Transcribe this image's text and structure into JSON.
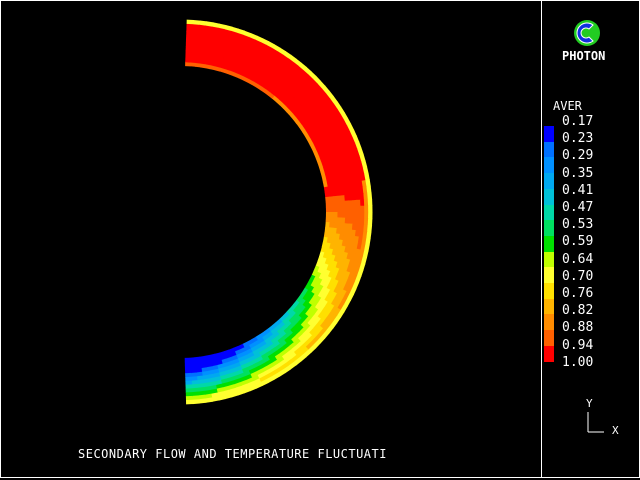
{
  "title": "SECONDARY FLOW AND TEMPERATURE FLUCTUATI",
  "logo": {
    "text": "PHOTON",
    "icon": "photon-logo-icon"
  },
  "legend": {
    "variable": "AVER",
    "labels": [
      "0.17",
      "0.23",
      "0.29",
      "0.35",
      "0.41",
      "0.47",
      "0.53",
      "0.59",
      "0.64",
      "0.70",
      "0.76",
      "0.82",
      "0.88",
      "0.94",
      "1.00"
    ],
    "colors": [
      "#0000ff",
      "#0070ff",
      "#0090ff",
      "#00a8f0",
      "#00c0d8",
      "#00d8a8",
      "#00e060",
      "#00e000",
      "#c0ff00",
      "#ffff30",
      "#ffe000",
      "#ffb400",
      "#ff8c00",
      "#ff6000",
      "#ff0000"
    ]
  },
  "axes": {
    "y": "Y",
    "x": "X"
  }
}
